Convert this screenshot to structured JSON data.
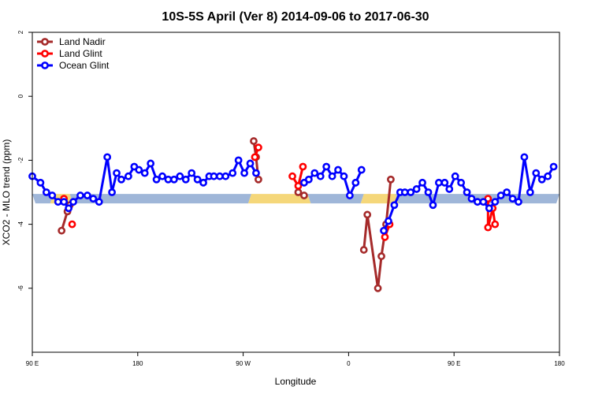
{
  "chart_data": {
    "type": "line",
    "title": "10S-5S April (Ver 8)   2014-09-06 to 2017-06-30",
    "xlabel": "Longitude",
    "ylabel": "XCO2 - MLO trend (ppm)",
    "xlim": [
      0,
      450
    ],
    "ylim": [
      -8,
      2
    ],
    "x_ticks": [
      {
        "value": 0,
        "label": "90 E"
      },
      {
        "value": 90,
        "label": "180"
      },
      {
        "value": 180,
        "label": "90 W"
      },
      {
        "value": 270,
        "label": "0"
      },
      {
        "value": 360,
        "label": "90 E"
      },
      {
        "value": 450,
        "label": "180"
      }
    ],
    "y_ticks": [
      {
        "value": 2,
        "label": "2"
      },
      {
        "value": 0,
        "label": "0"
      },
      {
        "value": -2,
        "label": "-2"
      },
      {
        "value": -4,
        "label": "-4"
      },
      {
        "value": -6,
        "label": "-6"
      }
    ],
    "grid": false,
    "legend_position": "top-left",
    "colors": {
      "land_nadir": "#a52a2a",
      "land_glint": "#ff0000",
      "ocean_glint": "#0000ff",
      "ocean_band": "#9fb6d8",
      "land_band": "#f5d77a"
    },
    "surface_band": {
      "y_center": -3.2,
      "segments": [
        {
          "type": "ocean",
          "x_start": 0,
          "x_end": 18
        },
        {
          "type": "land",
          "x_start": 18,
          "x_end": 32
        },
        {
          "type": "ocean",
          "x_start": 32,
          "x_end": 187
        },
        {
          "type": "land",
          "x_start": 187,
          "x_end": 235
        },
        {
          "type": "ocean",
          "x_start": 235,
          "x_end": 283
        },
        {
          "type": "land",
          "x_start": 283,
          "x_end": 310
        },
        {
          "type": "ocean",
          "x_start": 310,
          "x_end": 450
        }
      ]
    },
    "series": [
      {
        "name": "Land Nadir",
        "color": "#a52a2a",
        "segments": [
          [
            [
              25,
              -4.2
            ],
            [
              30,
              -3.6
            ],
            [
              32,
              -3.4
            ]
          ],
          [
            [
              189,
              -1.4
            ],
            [
              191,
              -1.9
            ],
            [
              193,
              -2.6
            ]
          ],
          [
            [
              227,
              -3.0
            ],
            [
              232,
              -3.1
            ]
          ],
          [
            [
              283,
              -4.8
            ],
            [
              286,
              -3.7
            ],
            [
              295,
              -6.0
            ],
            [
              298,
              -5.0
            ],
            [
              302,
              -4.0
            ],
            [
              306,
              -2.6
            ]
          ]
        ]
      },
      {
        "name": "Land Glint",
        "color": "#ff0000",
        "segments": [
          [
            [
              27,
              -3.2
            ]
          ],
          [
            [
              34,
              -4.0
            ]
          ],
          [
            [
              190,
              -1.9
            ],
            [
              193,
              -1.6
            ]
          ],
          [
            [
              222,
              -2.5
            ],
            [
              227,
              -2.8
            ],
            [
              231,
              -2.2
            ]
          ],
          [
            [
              301,
              -4.4
            ],
            [
              305,
              -4.0
            ]
          ],
          [
            [
              389,
              -3.2
            ],
            [
              389,
              -4.1
            ],
            [
              393,
              -3.5
            ],
            [
              395,
              -4.0
            ]
          ]
        ]
      },
      {
        "name": "Ocean Glint",
        "color": "#0000ff",
        "segments": [
          [
            [
              0,
              -2.5
            ],
            [
              7,
              -2.7
            ],
            [
              12,
              -3.0
            ],
            [
              17,
              -3.1
            ],
            [
              22,
              -3.3
            ],
            [
              27,
              -3.3
            ],
            [
              31,
              -3.5
            ],
            [
              35,
              -3.3
            ],
            [
              41,
              -3.1
            ],
            [
              47,
              -3.1
            ],
            [
              52,
              -3.2
            ],
            [
              57,
              -3.3
            ],
            [
              64,
              -1.9
            ],
            [
              68,
              -3.0
            ],
            [
              72,
              -2.4
            ],
            [
              76,
              -2.6
            ],
            [
              82,
              -2.5
            ],
            [
              87,
              -2.2
            ],
            [
              91,
              -2.3
            ],
            [
              96,
              -2.4
            ],
            [
              101,
              -2.1
            ],
            [
              106,
              -2.6
            ],
            [
              111,
              -2.5
            ],
            [
              116,
              -2.6
            ],
            [
              121,
              -2.6
            ],
            [
              126,
              -2.5
            ],
            [
              131,
              -2.6
            ],
            [
              136,
              -2.4
            ],
            [
              141,
              -2.6
            ],
            [
              146,
              -2.7
            ],
            [
              151,
              -2.5
            ],
            [
              155,
              -2.5
            ],
            [
              160,
              -2.5
            ],
            [
              165,
              -2.5
            ],
            [
              171,
              -2.4
            ],
            [
              176,
              -2.0
            ],
            [
              181,
              -2.4
            ],
            [
              186,
              -2.1
            ],
            [
              191,
              -2.4
            ]
          ],
          [
            [
              232,
              -2.7
            ],
            [
              236,
              -2.6
            ],
            [
              241,
              -2.4
            ],
            [
              246,
              -2.5
            ],
            [
              251,
              -2.2
            ],
            [
              256,
              -2.5
            ],
            [
              261,
              -2.3
            ],
            [
              266,
              -2.5
            ],
            [
              271,
              -3.1
            ],
            [
              276,
              -2.7
            ],
            [
              281,
              -2.3
            ]
          ],
          [
            [
              300,
              -4.2
            ],
            [
              304,
              -3.9
            ],
            [
              309,
              -3.4
            ],
            [
              314,
              -3.0
            ],
            [
              318,
              -3.0
            ],
            [
              323,
              -3.0
            ],
            [
              328,
              -2.9
            ],
            [
              333,
              -2.7
            ],
            [
              338,
              -3.0
            ],
            [
              342,
              -3.4
            ],
            [
              347,
              -2.7
            ],
            [
              352,
              -2.7
            ],
            [
              356,
              -2.9
            ],
            [
              361,
              -2.5
            ],
            [
              366,
              -2.7
            ],
            [
              371,
              -3.0
            ],
            [
              375,
              -3.2
            ],
            [
              380,
              -3.3
            ],
            [
              385,
              -3.3
            ],
            [
              390,
              -3.5
            ],
            [
              395,
              -3.3
            ],
            [
              400,
              -3.1
            ],
            [
              405,
              -3.0
            ],
            [
              410,
              -3.2
            ],
            [
              415,
              -3.3
            ],
            [
              420,
              -1.9
            ],
            [
              425,
              -3.0
            ],
            [
              430,
              -2.4
            ],
            [
              435,
              -2.6
            ],
            [
              440,
              -2.5
            ],
            [
              445,
              -2.2
            ]
          ]
        ]
      }
    ]
  }
}
